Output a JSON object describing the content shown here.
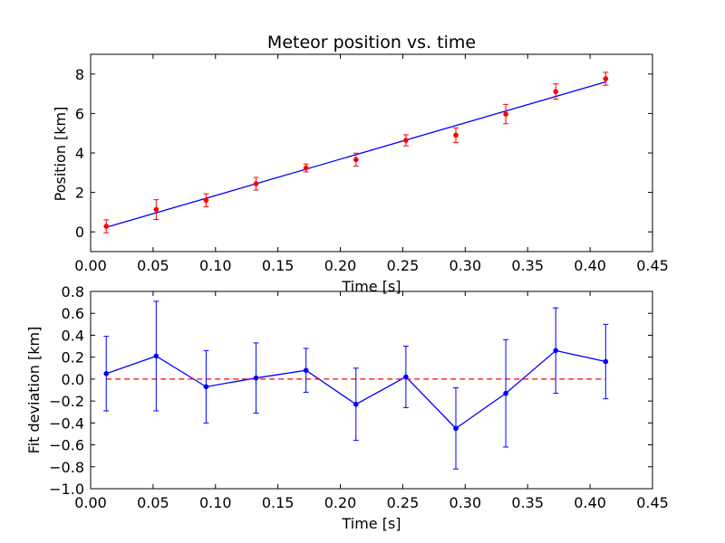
{
  "chart_data": [
    {
      "type": "scatter",
      "title": "Meteor position vs. time",
      "xlabel": "Time [s]",
      "ylabel": "Position [km]",
      "xlim": [
        0.0,
        0.45
      ],
      "ylim": [
        -1,
        9
      ],
      "x_ticks": [
        "0.00",
        "0.05",
        "0.10",
        "0.15",
        "0.20",
        "0.25",
        "0.30",
        "0.35",
        "0.40",
        "0.45"
      ],
      "y_ticks": [
        "0",
        "2",
        "4",
        "6",
        "8"
      ],
      "grid": false,
      "series": [
        {
          "kind": "errorbar-markers",
          "color": "#ff0000",
          "x": [
            0.0125,
            0.0525,
            0.0925,
            0.1325,
            0.1725,
            0.2125,
            0.2525,
            0.2925,
            0.3325,
            0.3725,
            0.4125
          ],
          "y": [
            0.28,
            1.13,
            1.6,
            2.44,
            3.24,
            3.66,
            4.64,
            4.9,
            5.97,
            7.11,
            7.76
          ],
          "yerr": [
            0.33,
            0.5,
            0.33,
            0.32,
            0.2,
            0.33,
            0.28,
            0.37,
            0.49,
            0.39,
            0.33
          ]
        },
        {
          "kind": "fit-line",
          "color": "#0000ff",
          "x": [
            0.0125,
            0.4125
          ],
          "y": [
            0.23,
            7.6
          ]
        }
      ]
    },
    {
      "type": "scatter",
      "title": "",
      "xlabel": "Time [s]",
      "ylabel": "Fit deviation [km]",
      "xlim": [
        0.0,
        0.45
      ],
      "ylim": [
        -1.0,
        0.8
      ],
      "x_ticks": [
        "0.00",
        "0.05",
        "0.10",
        "0.15",
        "0.20",
        "0.25",
        "0.30",
        "0.35",
        "0.40",
        "0.45"
      ],
      "y_ticks": [
        "−1.0",
        "−0.8",
        "−0.6",
        "−0.4",
        "−0.2",
        "0.0",
        "0.2",
        "0.4",
        "0.6",
        "0.8"
      ],
      "grid": false,
      "series": [
        {
          "kind": "errorbar-line",
          "color": "#0000ff",
          "x": [
            0.0125,
            0.0525,
            0.0925,
            0.1325,
            0.1725,
            0.2125,
            0.2525,
            0.2925,
            0.3325,
            0.3725,
            0.4125
          ],
          "y": [
            0.05,
            0.21,
            -0.07,
            0.01,
            0.08,
            -0.23,
            0.02,
            -0.45,
            -0.13,
            0.26,
            0.16
          ],
          "yerr": [
            0.34,
            0.5,
            0.33,
            0.32,
            0.2,
            0.33,
            0.28,
            0.37,
            0.49,
            0.39,
            0.34
          ]
        },
        {
          "kind": "reference-line",
          "style": "dashed",
          "color": "#ff0000",
          "x": [
            0.0125,
            0.4125
          ],
          "y": [
            0.0,
            0.0
          ]
        }
      ]
    }
  ]
}
